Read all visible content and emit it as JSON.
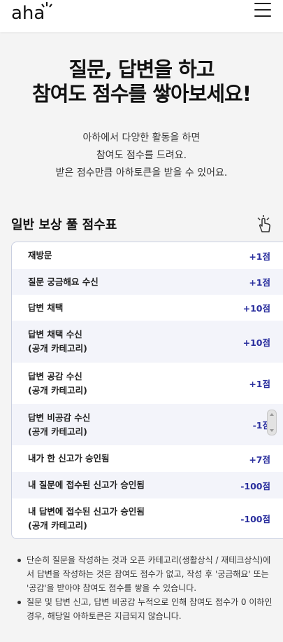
{
  "header": {
    "logo_text": "aha",
    "menu_icon": "hamburger-menu-icon"
  },
  "hero": {
    "title_line1": "질문, 답변을 하고",
    "title_line2": "참여도 점수를 쌓아보세요!",
    "desc_line1": "아하에서 다양한 활동을 하면",
    "desc_line2": "참여도 점수를 드려요.",
    "desc_line3": "받은 점수만큼 아하토큰을 받을 수 있어요."
  },
  "reward_table": {
    "title": "일반 보상 풀 점수표",
    "icon": "hand-pointer-icon",
    "rows": [
      {
        "label_line1": "재방문",
        "label_line2": "",
        "points": "+1점"
      },
      {
        "label_line1": "질문 궁금해요 수신",
        "label_line2": "",
        "points": "+1점"
      },
      {
        "label_line1": "답변 채택",
        "label_line2": "",
        "points": "+10점"
      },
      {
        "label_line1": "답변 채택 수신",
        "label_line2": "(공개 카테고리)",
        "points": "+10점"
      },
      {
        "label_line1": "답변 공감 수신",
        "label_line2": "(공개 카테고리)",
        "points": "+1점"
      },
      {
        "label_line1": "답변 비공감 수신",
        "label_line2": "(공개 카테고리)",
        "points": "-1점"
      },
      {
        "label_line1": "내가 한 신고가 승인됨",
        "label_line2": "",
        "points": "+7점"
      },
      {
        "label_line1": "내 질문에 접수된 신고가 승인됨",
        "label_line2": "",
        "points": "-100점"
      },
      {
        "label_line1": "내 답변에 접수된 신고가 승인됨",
        "label_line2": "(공개 카테고리)",
        "points": "-100점"
      }
    ]
  },
  "notes": [
    "단순히 질문을 작성하는 것과 오픈 카테고리(생활상식 / 재테크상식)에서 답변을 작성하는 것은 참여도 점수가 없고, 작성 후 '궁금해요' 또는 '공감'을 받아야 참여도 점수를 쌓을 수 있습니다.",
    "질문 및 답변 신고, 답변 비공감 누적으로 인해 참여도 점수가 0 이하인 경우, 해당일 아하토큰은 지급되지 않습니다."
  ]
}
